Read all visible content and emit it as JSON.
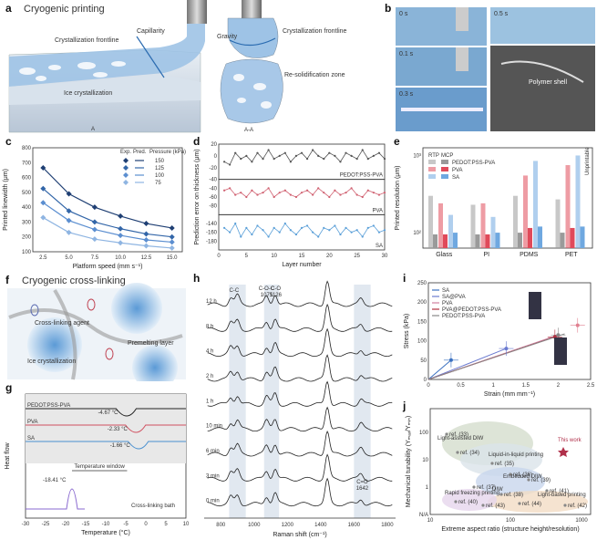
{
  "panel_labels": {
    "a": "a",
    "b": "b",
    "c": "c",
    "d": "d",
    "e": "e",
    "f": "f",
    "g": "g",
    "h": "h",
    "i": "i",
    "j": "j"
  },
  "panel_a": {
    "title": "Cryogenic printing",
    "labels": [
      "Crystallization frontline",
      "Capillarity",
      "Ice crystallization",
      "Gravity",
      "Crystallization frontline",
      "Re-solidification zone"
    ],
    "section_marker": "A",
    "section_title": "A-A"
  },
  "panel_b": {
    "times": [
      "0 s",
      "0.1 s",
      "0.3 s",
      "0.5 s"
    ],
    "inset_label": "Polymer shell"
  },
  "panel_f": {
    "title": "Cryogenic cross-linking",
    "labels": [
      "Cross-linking agent",
      "Ice crystallization",
      "Premelting layer"
    ]
  },
  "chart_data": [
    {
      "id": "c",
      "type": "scatter",
      "xlabel": "Platform speed (mm s⁻¹)",
      "ylabel": "Printed linewidth (μm)",
      "xlim": [
        1.5,
        16
      ],
      "ylim": [
        100,
        800
      ],
      "xticks": [
        2.5,
        5.0,
        7.5,
        10.0,
        12.5,
        15.0
      ],
      "yticks": [
        100,
        200,
        300,
        400,
        500,
        600,
        700,
        800
      ],
      "legend_headers": [
        "Exp.",
        "Pred.",
        "Pressure (kPa)"
      ],
      "x": [
        2.5,
        5,
        7.5,
        10,
        12.5,
        15
      ],
      "series": [
        {
          "name": "150",
          "color": "#1f3f73",
          "values": [
            665,
            490,
            400,
            340,
            290,
            260
          ]
        },
        {
          "name": "125",
          "color": "#3366a8",
          "values": [
            525,
            375,
            300,
            255,
            220,
            200
          ]
        },
        {
          "name": "100",
          "color": "#5b8ed0",
          "values": [
            430,
            310,
            250,
            210,
            180,
            165
          ]
        },
        {
          "name": "75",
          "color": "#8fb5e2",
          "values": [
            330,
            230,
            185,
            160,
            140,
            125
          ]
        }
      ]
    },
    {
      "id": "d",
      "type": "line",
      "xlabel": "Layer number",
      "ylabel": "Prediction error on thickness (μm)",
      "xlim": [
        0,
        30
      ],
      "xticks": [
        0,
        5,
        10,
        15,
        20,
        25,
        30
      ],
      "series": [
        {
          "name": "PEDOT:PSS-PVA",
          "color": "#555555",
          "values": [
            -10,
            -15,
            5,
            -5,
            0,
            -10,
            5,
            -5,
            10,
            -5,
            0,
            5,
            -10,
            0,
            5,
            -5,
            10,
            0,
            -5,
            5,
            0,
            -10,
            5,
            0,
            -5,
            10,
            -5,
            0,
            5,
            -5
          ],
          "ylim": [
            -40,
            20
          ],
          "yticks": [
            -40,
            -20,
            0,
            20
          ]
        },
        {
          "name": "PVA",
          "color": "#d06070",
          "values": [
            -45,
            -40,
            -55,
            -50,
            -60,
            -45,
            -55,
            -50,
            -40,
            -60,
            -50,
            -45,
            -55,
            -60,
            -50,
            -45,
            -55,
            -40,
            -50,
            -60,
            -45,
            -55,
            -50,
            -40,
            -55,
            -60,
            -45,
            -50,
            -55,
            -50
          ],
          "ylim": [
            -100,
            -20
          ],
          "yticks": [
            -80,
            -60,
            -40
          ]
        },
        {
          "name": "SA",
          "color": "#5a9fd8",
          "values": [
            -150,
            -160,
            -140,
            -170,
            -150,
            -165,
            -145,
            -155,
            -170,
            -150,
            -160,
            -140,
            -155,
            -165,
            -150,
            -145,
            -160,
            -170,
            -150,
            -155,
            -145,
            -165,
            -150,
            -160,
            -155,
            -170,
            -150,
            -145,
            -160,
            -155
          ],
          "ylim": [
            -200,
            -120
          ],
          "yticks": [
            -180,
            -160,
            -140
          ]
        }
      ]
    },
    {
      "id": "e",
      "type": "bar",
      "ylabel": "Printed resolution (μm)",
      "ylog": true,
      "categories": [
        "Glass",
        "PI",
        "PDMS",
        "PET"
      ],
      "legend_headers": [
        "RTP",
        "MCP"
      ],
      "series": [
        {
          "name": "PEDOT:PSS-PVA",
          "color": "#9a9a9a",
          "rtp": [
            300,
            230,
            300,
            270
          ],
          "mcp": [
            95,
            95,
            100,
            100
          ]
        },
        {
          "name": "PVA",
          "color": "#e04a5a",
          "rtp": [
            240,
            240,
            550,
            750
          ],
          "mcp": [
            95,
            95,
            115,
            115
          ]
        },
        {
          "name": "SA",
          "color": "#6fa8e0",
          "rtp": [
            170,
            160,
            850,
            1000
          ],
          "mcp": [
            100,
            100,
            120,
            120
          ]
        }
      ],
      "yticks": [
        "10²",
        "10³"
      ],
      "annotation": "Unprintable"
    },
    {
      "id": "g",
      "type": "line",
      "xlabel": "Temperature (°C)",
      "ylabel": "Heat flow",
      "xlim": [
        -30,
        10
      ],
      "xticks": [
        -30,
        -25,
        -20,
        -15,
        -10,
        -5,
        0,
        5,
        10
      ],
      "series": [
        {
          "name": "PEDOT:PSS-PVA",
          "color": "#222222",
          "peak": -4.67,
          "peak_label": "-4.67 °C"
        },
        {
          "name": "PVA",
          "color": "#d05060",
          "peak": -2.33,
          "peak_label": "-2.33 °C"
        },
        {
          "name": "SA",
          "color": "#4a90d0",
          "peak": -1.66,
          "peak_label": "-1.66 °C"
        },
        {
          "name": "Cross-linking bath",
          "color": "#8a6ad0",
          "peak": -18.41,
          "peak_label": "-18.41 °C"
        }
      ],
      "annotation": "Temperature window"
    },
    {
      "id": "h",
      "type": "line",
      "xlabel": "Raman shift (cm⁻¹)",
      "xlim": [
        700,
        1850
      ],
      "xticks": [
        800,
        1000,
        1200,
        1400,
        1600,
        1800
      ],
      "series_labels": [
        "12 h",
        "8 h",
        "4 h",
        "2 h",
        "1 h",
        "10 min",
        "6 min",
        "3 min",
        "0 min"
      ],
      "annotations": [
        "C-C",
        "C-O-C",
        "1075",
        "C-O",
        "1126",
        "C=O",
        "1642"
      ]
    },
    {
      "id": "i",
      "type": "line",
      "xlabel": "Strain (mm mm⁻¹)",
      "ylabel": "Stress (kPa)",
      "xlim": [
        0,
        2.5
      ],
      "ylim": [
        0,
        250
      ],
      "xticks": [
        0,
        0.5,
        1.0,
        1.5,
        2.0,
        2.5
      ],
      "yticks": [
        0,
        50,
        100,
        150,
        200,
        250
      ],
      "series": [
        {
          "name": "SA",
          "color": "#3a70c0",
          "x": [
            0,
            0.35
          ],
          "y": [
            0,
            50
          ]
        },
        {
          "name": "SA@PVA",
          "color": "#6a7ad0",
          "x": [
            0,
            1.2
          ],
          "y": [
            0,
            80
          ]
        },
        {
          "name": "PVA",
          "color": "#d080a0",
          "x": [
            0,
            2.0
          ],
          "y": [
            0,
            115
          ]
        },
        {
          "name": "PVA@PEDOT:PSS-PVA",
          "color": "#b03040",
          "x": [
            0,
            1.95
          ],
          "y": [
            0,
            110
          ]
        },
        {
          "name": "PEDOT:PSS-PVA",
          "color": "#888888",
          "x": [
            0,
            2.1
          ],
          "y": [
            0,
            118
          ]
        }
      ],
      "points": [
        {
          "x": 0.35,
          "y": 50,
          "color": "#3a70c0"
        },
        {
          "x": 1.2,
          "y": 80,
          "color": "#6a7ad0"
        },
        {
          "x": 2.0,
          "y": 115,
          "color": "#888888"
        },
        {
          "x": 1.95,
          "y": 110,
          "color": "#b03040"
        },
        {
          "x": 2.3,
          "y": 140,
          "color": "#e08090"
        }
      ]
    },
    {
      "id": "j",
      "type": "scatter",
      "xlabel": "Extreme aspect ratio (structure height/resolution)",
      "ylabel": "Mechanical tunability (Yₘₐₓ/Yₘᵢₙ)",
      "xlog": true,
      "ylog": true,
      "xticks": [
        "10",
        "100",
        "1000"
      ],
      "yticks": [
        "N/A",
        "1",
        "10",
        "100"
      ],
      "regions": [
        "Light-assisted DIW",
        "Liquid-in-liquid printing",
        "Embedded DIW",
        "Rapid freezing printing",
        "DIW",
        "Light-based printing"
      ],
      "highlight": "This work",
      "refs": [
        "ref. (33)",
        "ref. (34)",
        "ref. (35)",
        "ref. (36)",
        "ref. (37)",
        "ref. (38)",
        "ref. (39)",
        "ref. (40)",
        "ref. (41)",
        "ref. (42)",
        "ref. (43)",
        "ref. (44)"
      ]
    }
  ]
}
